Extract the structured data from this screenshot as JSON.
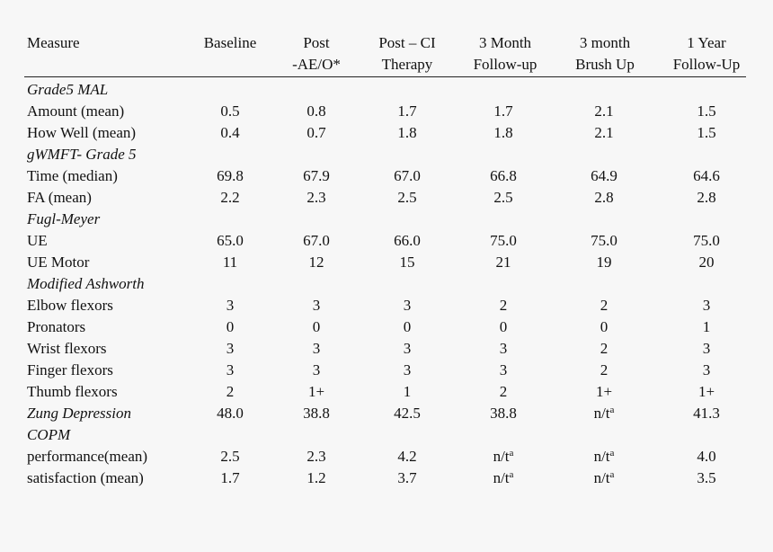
{
  "table": {
    "headers": [
      {
        "line1": "Measure",
        "line2": ""
      },
      {
        "line1": "Baseline",
        "line2": ""
      },
      {
        "line1": "Post",
        "line2": "-AE/O*"
      },
      {
        "line1": "Post – CI",
        "line2": "Therapy"
      },
      {
        "line1": "3 Month",
        "line2": "Follow-up"
      },
      {
        "line1": "3 month",
        "line2": "Brush Up"
      },
      {
        "line1": "1 Year",
        "line2": "Follow-Up"
      }
    ],
    "rows": [
      {
        "type": "section",
        "label": "Grade5 MAL"
      },
      {
        "type": "data",
        "label": "Amount (mean)",
        "values": [
          "0.5",
          "0.8",
          "1.7",
          "1.7",
          "2.1",
          "1.5"
        ]
      },
      {
        "type": "data",
        "label": "How Well (mean)",
        "values": [
          "0.4",
          "0.7",
          "1.8",
          "1.8",
          "2.1",
          "1.5"
        ]
      },
      {
        "type": "section",
        "label": "gWMFT- Grade 5"
      },
      {
        "type": "data",
        "label": "Time (median)",
        "values": [
          "69.8",
          "67.9",
          "67.0",
          "66.8",
          "64.9",
          "64.6"
        ]
      },
      {
        "type": "data",
        "label": "FA (mean)",
        "values": [
          "2.2",
          "2.3",
          "2.5",
          "2.5",
          "2.8",
          "2.8"
        ]
      },
      {
        "type": "section",
        "label": "Fugl-Meyer"
      },
      {
        "type": "data",
        "label": "UE",
        "values": [
          "65.0",
          "67.0",
          "66.0",
          "75.0",
          "75.0",
          "75.0"
        ]
      },
      {
        "type": "data",
        "label": "UE Motor",
        "values": [
          "11",
          "12",
          "15",
          "21",
          "19",
          "20"
        ]
      },
      {
        "type": "section",
        "label": "Modified Ashworth"
      },
      {
        "type": "data",
        "label": "Elbow flexors",
        "values": [
          "3",
          "3",
          "3",
          "2",
          "2",
          "3"
        ]
      },
      {
        "type": "data",
        "label": "Pronators",
        "values": [
          "0",
          "0",
          "0",
          "0",
          "0",
          "1"
        ]
      },
      {
        "type": "data",
        "label": "Wrist flexors",
        "values": [
          "3",
          "3",
          "3",
          "3",
          "2",
          "3"
        ]
      },
      {
        "type": "data",
        "label": "Finger flexors",
        "values": [
          "3",
          "3",
          "3",
          "3",
          "2",
          "3"
        ]
      },
      {
        "type": "data",
        "label": "Thumb flexors",
        "values": [
          "2",
          "1+",
          "1",
          "2",
          "1+",
          "1+"
        ]
      },
      {
        "type": "data",
        "italic_label": true,
        "label": "Zung Depression",
        "values": [
          "48.0",
          "38.8",
          "42.5",
          "38.8",
          "n/t^a",
          "41.3"
        ]
      },
      {
        "type": "section",
        "label": "COPM"
      },
      {
        "type": "data",
        "label": "performance(mean)",
        "values": [
          "2.5",
          "2.3",
          "4.2",
          "n/t^a",
          "n/t^a",
          "4.0"
        ]
      },
      {
        "type": "data",
        "label": "satisfaction (mean)",
        "values": [
          "1.7",
          "1.2",
          "3.7",
          "n/t^a",
          "n/t^a",
          "3.5"
        ]
      }
    ]
  }
}
